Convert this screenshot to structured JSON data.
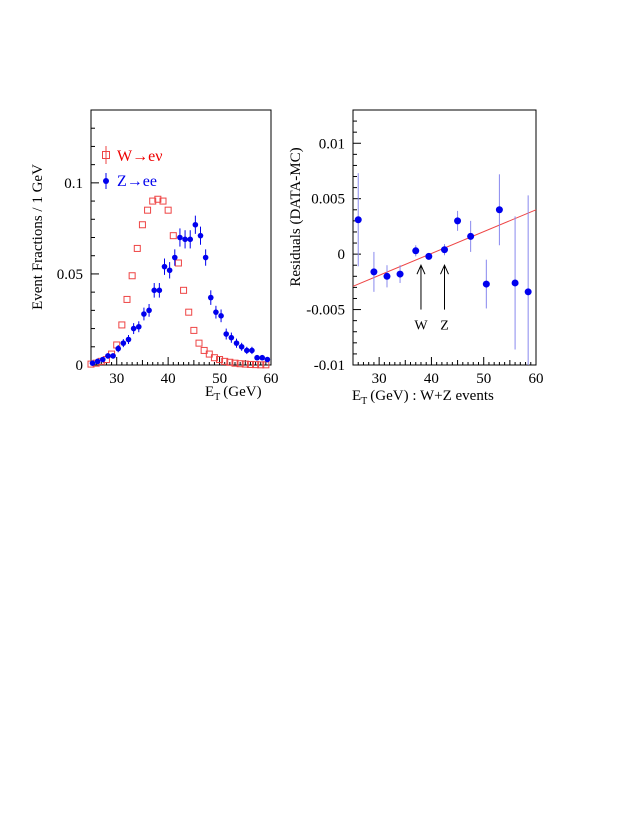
{
  "chart_data": [
    {
      "type": "scatter",
      "panel": "left",
      "title": "",
      "xlabel": "E",
      "xlabel_sub": "T",
      "xlabel_unit": "(GeV)",
      "ylabel": "Event Fractions / 1 GeV",
      "xlim": [
        25,
        60
      ],
      "ylim": [
        0,
        0.14
      ],
      "xticks": [
        30,
        40,
        50,
        60
      ],
      "xticklabels": [
        "30",
        "40",
        "50",
        "60"
      ],
      "yticks": [
        0,
        0.05,
        0.1
      ],
      "yticklabels": [
        "0",
        "0.05",
        "0.1"
      ],
      "legend": [
        "W→eν",
        "Z→ee"
      ],
      "grid": false,
      "colors": {
        "w": "#ee4444",
        "z": "#0000ee"
      },
      "series": [
        {
          "name": "W→eν",
          "marker": "open-square",
          "x": [
            25,
            26,
            27,
            28,
            29,
            30,
            31,
            32,
            33,
            34,
            35,
            36,
            37,
            38,
            39,
            40,
            41,
            42,
            43,
            44,
            45,
            46,
            47,
            48,
            49,
            50,
            51,
            52,
            53,
            54,
            55,
            56,
            57,
            58,
            59
          ],
          "y": [
            0.0005,
            0.001,
            0.002,
            0.003,
            0.006,
            0.011,
            0.022,
            0.036,
            0.049,
            0.064,
            0.077,
            0.085,
            0.09,
            0.091,
            0.09,
            0.085,
            0.071,
            0.056,
            0.041,
            0.029,
            0.019,
            0.012,
            0.008,
            0.006,
            0.004,
            0.003,
            0.002,
            0.0015,
            0.001,
            0.0007,
            0.0005,
            0.0003,
            0.0002,
            0.0001,
            0.0001
          ]
        },
        {
          "name": "Z→ee",
          "marker": "filled-circle",
          "x": [
            25,
            26,
            27,
            28,
            29,
            30,
            31,
            32,
            33,
            34,
            35,
            36,
            37,
            38,
            39,
            40,
            41,
            42,
            43,
            44,
            45,
            46,
            47,
            48,
            49,
            50,
            51,
            52,
            53,
            54,
            55,
            56,
            57,
            58,
            59
          ],
          "y": [
            0.001,
            0.002,
            0.003,
            0.005,
            0.005,
            0.009,
            0.012,
            0.014,
            0.02,
            0.021,
            0.028,
            0.03,
            0.041,
            0.041,
            0.054,
            0.052,
            0.059,
            0.07,
            0.069,
            0.069,
            0.077,
            0.071,
            0.059,
            0.037,
            0.029,
            0.027,
            0.017,
            0.015,
            0.012,
            0.01,
            0.008,
            0.008,
            0.004,
            0.004,
            0.003
          ],
          "err": [
            0.0008,
            0.001,
            0.0012,
            0.0015,
            0.0015,
            0.002,
            0.0022,
            0.0025,
            0.003,
            0.003,
            0.0035,
            0.0035,
            0.004,
            0.004,
            0.0045,
            0.0045,
            0.0045,
            0.005,
            0.005,
            0.005,
            0.005,
            0.005,
            0.0045,
            0.004,
            0.0035,
            0.0035,
            0.003,
            0.0028,
            0.0025,
            0.0022,
            0.002,
            0.002,
            0.0015,
            0.0015,
            0.0012
          ]
        }
      ]
    },
    {
      "type": "scatter",
      "panel": "right",
      "title": "",
      "xlabel": "E",
      "xlabel_sub": "T",
      "xlabel_unit": "(GeV) : W+Z events",
      "ylabel": "Residuals (DATA-MC)",
      "xlim": [
        25,
        60
      ],
      "ylim": [
        -0.01,
        0.013
      ],
      "xticks": [
        30,
        40,
        50,
        60
      ],
      "xticklabels": [
        "30",
        "40",
        "50",
        "60"
      ],
      "yticks": [
        -0.01,
        -0.005,
        0,
        0.005,
        0.01
      ],
      "yticklabels": [
        "-0.01",
        "-0.005",
        "0",
        "0.005",
        "0.01"
      ],
      "grid": false,
      "colors": {
        "points": "#0000ee",
        "errbars": "#8888ee",
        "fit": "#ee4444"
      },
      "series": [
        {
          "name": "residuals",
          "marker": "filled-circle",
          "x": [
            26,
            29,
            31.5,
            34,
            37,
            39.5,
            42.5,
            45,
            47.5,
            50.5,
            53,
            56,
            58.5
          ],
          "y": [
            0.0031,
            -0.0016,
            -0.002,
            -0.0018,
            0.0003,
            -0.0002,
            0.0004,
            0.003,
            0.0016,
            -0.0027,
            0.004,
            -0.0026,
            -0.0034
          ],
          "err": [
            0.0042,
            0.0018,
            0.001,
            0.0008,
            0.0005,
            0.0003,
            0.0005,
            0.0009,
            0.0014,
            0.0022,
            0.0032,
            0.006,
            0.0087
          ]
        }
      ],
      "fit": {
        "x": [
          25,
          60
        ],
        "y": [
          -0.0029,
          0.004
        ]
      },
      "annotations": [
        {
          "label": "W",
          "x": 38,
          "y_tip": -0.001,
          "y_tail": -0.005
        },
        {
          "label": "Z",
          "x": 42.5,
          "y_tip": -0.001,
          "y_tail": -0.005
        }
      ]
    }
  ]
}
